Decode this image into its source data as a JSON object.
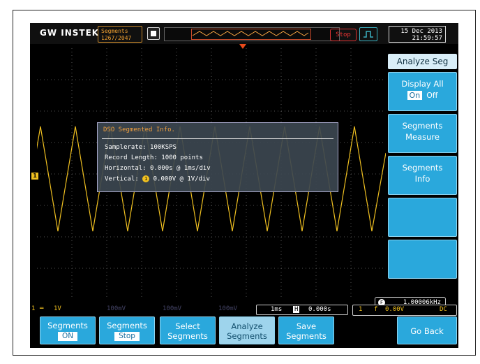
{
  "header": {
    "logo": "GW INSTEK",
    "segments_label": "Segments",
    "segments_count": "1267/2047",
    "stop_label": "Stop",
    "date": "15 Dec 2013",
    "time": "21:59:57"
  },
  "info_dialog": {
    "title": "DSO Segmented Info.",
    "samplerate": "Samplerate: 100KSPS",
    "record_length": "Record Length: 1000 points",
    "horizontal": "Horizontal: 0.000s @ 1ms/div",
    "vertical_prefix": "Vertical: ",
    "vertical_value": "0.000V @ 1V/div",
    "ch_badge": "1"
  },
  "side_menu": {
    "title": "Analyze Seg",
    "display_all": {
      "label": "Display All",
      "on": "On",
      "off": "Off"
    },
    "segments_measure": [
      "Segments",
      "Measure"
    ],
    "segments_info": [
      "Segments",
      "Info"
    ]
  },
  "readouts": {
    "ch1_badge": "1",
    "freq_badge": "F",
    "frequency": "1.00006kHz",
    "ch1_scale": "1V",
    "ch2_scale": "100mV",
    "ch3_scale": "100mV",
    "ch4_scale": "100mV",
    "timebase": "1ms",
    "h_badge": "H",
    "h_position": "0.000s",
    "trig_badge": "1",
    "trig_slope": "f",
    "trig_level": "0.00V",
    "coupling": "DC"
  },
  "bottom_menu": {
    "segments": {
      "label": "Segments",
      "value": "ON"
    },
    "segments_run": {
      "label": "Segments",
      "value": "Stop"
    },
    "select": [
      "Select",
      "Segments"
    ],
    "analyze": [
      "Analyze",
      "Segments"
    ],
    "save": [
      "Save",
      "Segments"
    ],
    "go_back": "Go Back"
  },
  "colors": {
    "ch1": "#f0c020",
    "menu_blue": "#2aa8dc",
    "stop_red": "#ee3333"
  },
  "waveform": {
    "type": "triangle",
    "frequency_hz": 1000.06
  }
}
